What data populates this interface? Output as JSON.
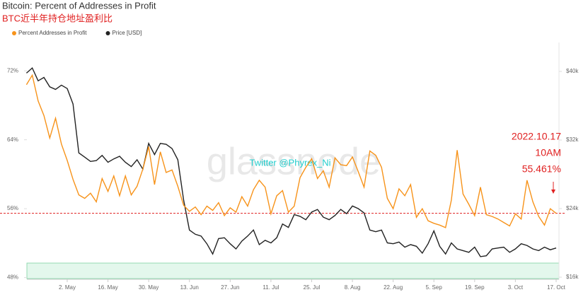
{
  "chart_data": {
    "type": "line",
    "title": "Bitcoin: Percent of Addresses in Profit",
    "subtitle": "BTC近半年持仓地址盈利比",
    "watermark": "glassnode",
    "credit": "Twitter @Phyrex_Ni",
    "x": [
      null,
      null,
      null,
      null,
      null,
      null,
      null,
      "2. May",
      null,
      null,
      null,
      null,
      null,
      null,
      "16. May",
      null,
      null,
      null,
      null,
      null,
      null,
      "30. May",
      null,
      null,
      null,
      null,
      null,
      null,
      "13. Jun",
      null,
      null,
      null,
      null,
      null,
      null,
      "27. Jun",
      null,
      null,
      null,
      null,
      null,
      null,
      "11. Jul",
      null,
      null,
      null,
      null,
      null,
      null,
      "25. Jul",
      null,
      null,
      null,
      null,
      null,
      null,
      "8. Aug",
      null,
      null,
      null,
      null,
      null,
      null,
      "22. Aug",
      null,
      null,
      null,
      null,
      null,
      null,
      "5. Sep",
      null,
      null,
      null,
      null,
      null,
      null,
      "19. Sep",
      null,
      null,
      null,
      null,
      null,
      null,
      "3. Oct",
      null,
      null,
      null,
      null,
      null,
      null,
      "17. Oct"
    ],
    "series": [
      {
        "name": "Percent Addresses in Profit",
        "color": "#f7931a",
        "values": [
          70.4,
          71.5,
          68.5,
          66.8,
          64.2,
          66.5,
          63.5,
          61.6,
          59.4,
          57.6,
          57.2,
          57.8,
          56.8,
          59.5,
          58.0,
          59.8,
          57.5,
          59.8,
          57.6,
          58.6,
          60.6,
          63.2,
          58.8,
          62.6,
          60.2,
          60.5,
          58.6,
          56.4,
          55.7,
          56.2,
          55.3,
          56.3,
          55.8,
          56.7,
          55.2,
          56.1,
          55.6,
          57.4,
          56.3,
          58.2,
          59.3,
          58.5,
          55.4,
          57.5,
          58.1,
          55.6,
          56.3,
          59.6,
          60.8,
          61.8,
          59.5,
          60.4,
          58.5,
          61.9,
          61.1,
          61.0,
          62.0,
          60.3,
          58.5,
          62.7,
          62.2,
          60.8,
          57.2,
          56.0,
          58.3,
          57.5,
          58.8,
          55.0,
          56.0,
          54.6,
          54.3,
          54.1,
          53.8,
          57.0,
          62.8,
          57.7,
          56.5,
          55.2,
          58.5,
          55.3,
          55.1,
          54.8,
          54.4,
          54.0,
          55.4,
          54.8,
          59.3,
          56.8,
          55.1,
          54.1,
          56.0,
          55.461
        ]
      },
      {
        "name": "Price [USD]",
        "color": "#222222",
        "axis": "y2",
        "values": [
          39800,
          40400,
          38900,
          39300,
          38200,
          37900,
          38400,
          38000,
          36200,
          30500,
          30000,
          29500,
          29600,
          30200,
          29400,
          29800,
          30100,
          29400,
          28900,
          29700,
          28600,
          31600,
          30300,
          31600,
          31500,
          31000,
          29700,
          25000,
          21500,
          21000,
          20800,
          19900,
          18700,
          20500,
          20600,
          19900,
          19300,
          20200,
          20800,
          21500,
          19800,
          20300,
          20000,
          20600,
          22200,
          21800,
          23300,
          23100,
          22700,
          23600,
          23900,
          23000,
          22700,
          23200,
          23900,
          23400,
          24300,
          24000,
          23500,
          21500,
          21300,
          21500,
          20000,
          19900,
          20100,
          19500,
          19800,
          19600,
          18800,
          19900,
          21400,
          19600,
          18700,
          20000,
          19300,
          19100,
          18900,
          19500,
          18400,
          18500,
          19300,
          19400,
          19500,
          18900,
          19300,
          19900,
          19700,
          19300,
          19100,
          19500,
          19200,
          19400
        ]
      }
    ],
    "ylim": [
      47.8,
      75.3
    ],
    "yticks": [
      {
        "value": 48,
        "label": "48%"
      },
      {
        "value": 56,
        "label": "56%"
      },
      {
        "value": 64,
        "label": "64%"
      },
      {
        "value": 72,
        "label": "72%"
      }
    ],
    "y2lim": [
      15750,
      43380
    ],
    "y2ticks": [
      {
        "value": 16000,
        "label": "$16k"
      },
      {
        "value": 24000,
        "label": "$24k"
      },
      {
        "value": 32000,
        "label": "$32k"
      },
      {
        "value": 40000,
        "label": "$40k"
      }
    ],
    "reference_line": {
      "value": 55.461,
      "color": "#e02020"
    },
    "annotation": [
      "2022.10.17",
      "10AM",
      "55.461%"
    ]
  }
}
